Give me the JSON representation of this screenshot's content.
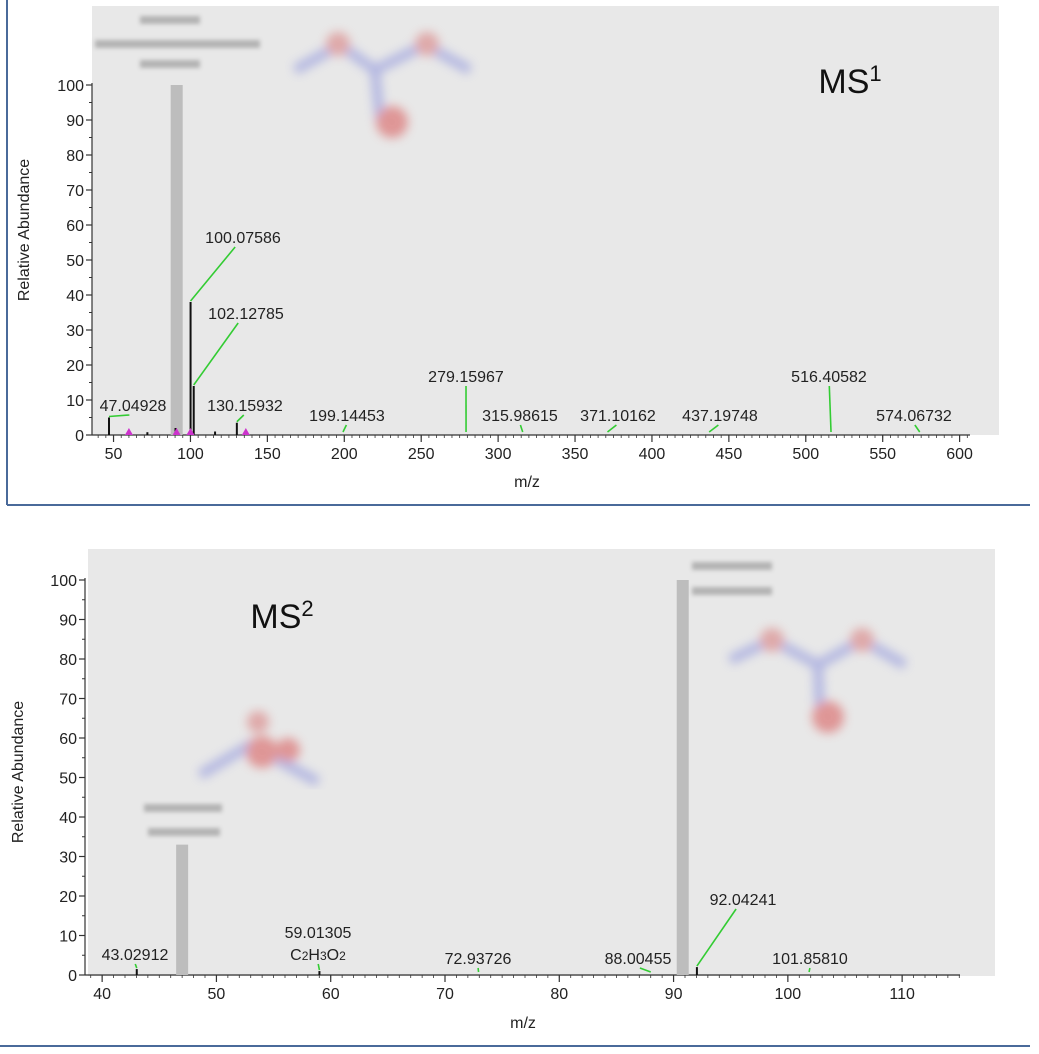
{
  "chart_data": [
    {
      "type": "bar",
      "panel_label": "MS",
      "panel_sup": "1",
      "xlabel": "m/z",
      "ylabel": "Relative Abundance",
      "xlim": [
        36,
        610
      ],
      "ylim": [
        0,
        100
      ],
      "xticks": [
        50,
        100,
        150,
        200,
        250,
        300,
        350,
        400,
        450,
        500,
        550,
        600
      ],
      "yticks": [
        0,
        10,
        20,
        30,
        40,
        50,
        60,
        70,
        80,
        90,
        100
      ],
      "highlight_peak": {
        "mz": 91.05,
        "intensity": 100
      },
      "peaks": [
        {
          "mz": 47.05,
          "intensity": 5
        },
        {
          "mz": 100.07586,
          "intensity": 38
        },
        {
          "mz": 102.12785,
          "intensity": 14
        },
        {
          "mz": 130.15932,
          "intensity": 3.5
        },
        {
          "mz": 90.3,
          "intensity": 2
        },
        {
          "mz": 72.0,
          "intensity": 0.8
        },
        {
          "mz": 116.0,
          "intensity": 1
        }
      ],
      "labels": [
        {
          "text": "47.04928",
          "mz": 47.04928
        },
        {
          "text": "100.07586",
          "mz": 100.07586
        },
        {
          "text": "102.12785",
          "mz": 102.12785
        },
        {
          "text": "130.15932",
          "mz": 130.15932
        },
        {
          "text": "199.14453",
          "mz": 199.14453
        },
        {
          "text": "279.15967",
          "mz": 279.15967
        },
        {
          "text": "315.98615",
          "mz": 315.98615
        },
        {
          "text": "371.10162",
          "mz": 371.10162
        },
        {
          "text": "437.19748",
          "mz": 437.19748
        },
        {
          "text": "516.40582",
          "mz": 516.40582
        },
        {
          "text": "574.06732",
          "mz": 574.06732
        }
      ]
    },
    {
      "type": "bar",
      "panel_label": "MS",
      "panel_sup": "2",
      "xlabel": "m/z",
      "ylabel": "Relative Abundance",
      "xlim": [
        38.5,
        115.5
      ],
      "ylim": [
        0,
        100
      ],
      "xticks": [
        40,
        50,
        60,
        70,
        80,
        90,
        100,
        110
      ],
      "yticks": [
        0,
        10,
        20,
        30,
        40,
        50,
        60,
        70,
        80,
        90,
        100
      ],
      "highlight_peaks": [
        {
          "mz": 47.0,
          "intensity": 33
        },
        {
          "mz": 90.8,
          "intensity": 100
        }
      ],
      "peaks": [
        {
          "mz": 43.02912,
          "intensity": 1.5
        },
        {
          "mz": 59.01305,
          "intensity": 1
        },
        {
          "mz": 92.04241,
          "intensity": 2
        }
      ],
      "labels": [
        {
          "text": "43.02912",
          "mz": 43.02912
        },
        {
          "text": "59.01305",
          "mz": 59.01305,
          "formula": "C2H3O2"
        },
        {
          "text": "72.93726",
          "mz": 72.93726
        },
        {
          "text": "88.00455",
          "mz": 88.00455
        },
        {
          "text": "92.04241",
          "mz": 92.04241
        },
        {
          "text": "101.85810",
          "mz": 101.8581
        }
      ]
    }
  ],
  "colors": {
    "plot_bg": "#e8e8e8",
    "highlight_bar": "#bdbdbd",
    "peak": "#111111",
    "leader": "#33cc33",
    "marker": "#cc33cc",
    "border": "#4a6a9a"
  }
}
